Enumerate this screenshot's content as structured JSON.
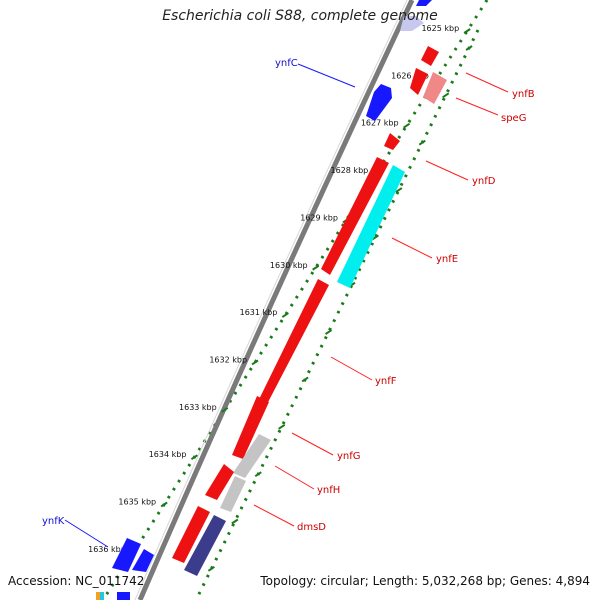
{
  "title": "Escherichia coli S88, complete genome",
  "footer": {
    "accession": "Accession: NC_011742",
    "summary": "Topology: circular; Length: 5,032,268 bp; Genes: 4,894"
  },
  "colors": {
    "forward_gene": "#1818ff",
    "reverse_gene": "#ee1111",
    "label_forward": "#1010cc",
    "label_reverse": "#cc0000",
    "tick": "#1a7a1a",
    "backbone": "#7a7a7a",
    "cyan_feature": "#00eeee",
    "gray_feature": "#c4c4c4",
    "pink_feature": "#f08888",
    "navy_feature": "#3c3c8c"
  },
  "ticks": [
    {
      "kbp": 1625,
      "label": "1625 kbp"
    },
    {
      "kbp": 1626,
      "label": "1626 kbp"
    },
    {
      "kbp": 1627,
      "label": "1627 kbp"
    },
    {
      "kbp": 1628,
      "label": "1628 kbp"
    },
    {
      "kbp": 1629,
      "label": "1629 kbp"
    },
    {
      "kbp": 1630,
      "label": "1630 kbp"
    },
    {
      "kbp": 1631,
      "label": "1631 kbp"
    },
    {
      "kbp": 1632,
      "label": "1632 kbp"
    },
    {
      "kbp": 1633,
      "label": "1633 kbp"
    },
    {
      "kbp": 1634,
      "label": "1634 kbp"
    },
    {
      "kbp": 1635,
      "label": "1635 kbp"
    },
    {
      "kbp": 1636,
      "label": "1636 kbp"
    }
  ],
  "gene_labels": {
    "ynfC": "ynfC",
    "ynfB": "ynfB",
    "speG": "speG",
    "ynfD": "ynfD",
    "ynfE": "ynfE",
    "ynfF": "ynfF",
    "ynfG": "ynfG",
    "ynfH": "ynfH",
    "dmsD": "dmsD",
    "ynfK": "ynfK"
  }
}
